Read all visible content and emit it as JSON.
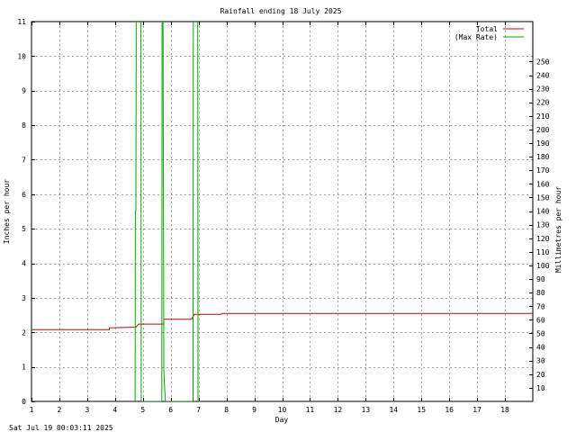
{
  "chart_data": {
    "type": "line",
    "title": "Rainfall ending 18 July 2025",
    "xlabel": "Day",
    "ylabel": "Inches per hour",
    "y2label": "Millimetres per hour",
    "xlim": [
      1,
      19
    ],
    "ylim": [
      0,
      11
    ],
    "y2lim": [
      0,
      279.4
    ],
    "x_ticks": [
      1,
      2,
      3,
      4,
      5,
      6,
      7,
      8,
      9,
      10,
      11,
      12,
      13,
      14,
      15,
      16,
      17,
      18
    ],
    "y_ticks": [
      0,
      1,
      2,
      3,
      4,
      5,
      6,
      7,
      8,
      9,
      10,
      11
    ],
    "y2_ticks": [
      10,
      20,
      30,
      40,
      50,
      60,
      70,
      80,
      90,
      100,
      110,
      120,
      130,
      140,
      150,
      160,
      170,
      180,
      190,
      200,
      210,
      220,
      230,
      240,
      250
    ],
    "grid": true,
    "legend_position": "top-right",
    "colors": {
      "total": "#cc0000",
      "max_rate": "#00aa00"
    },
    "series": [
      {
        "name": "Total",
        "color": "#cc0000",
        "x": [
          1.0,
          3.8,
          3.8,
          4.75,
          4.85,
          5.75,
          5.75,
          6.75,
          6.85,
          7.8,
          7.85,
          19.0
        ],
        "y": [
          2.08,
          2.08,
          2.13,
          2.15,
          2.24,
          2.24,
          2.38,
          2.38,
          2.52,
          2.52,
          2.55,
          2.55
        ]
      },
      {
        "name": "(Max Rate)",
        "color": "#00aa00",
        "x": [
          4.72,
          4.73,
          4.75,
          4.76,
          4.93,
          4.94,
          5.68,
          5.69,
          5.72,
          5.75,
          5.78,
          5.81,
          6.8,
          6.81,
          6.97,
          6.98
        ],
        "y": [
          0,
          5.5,
          5.5,
          11.5,
          11.5,
          0,
          0,
          11.5,
          11.5,
          0.9,
          0.4,
          0,
          0,
          11.5,
          11.5,
          0
        ]
      }
    ]
  },
  "footer": {
    "timestamp": "Sat Jul 19 00:03:11 2025"
  }
}
